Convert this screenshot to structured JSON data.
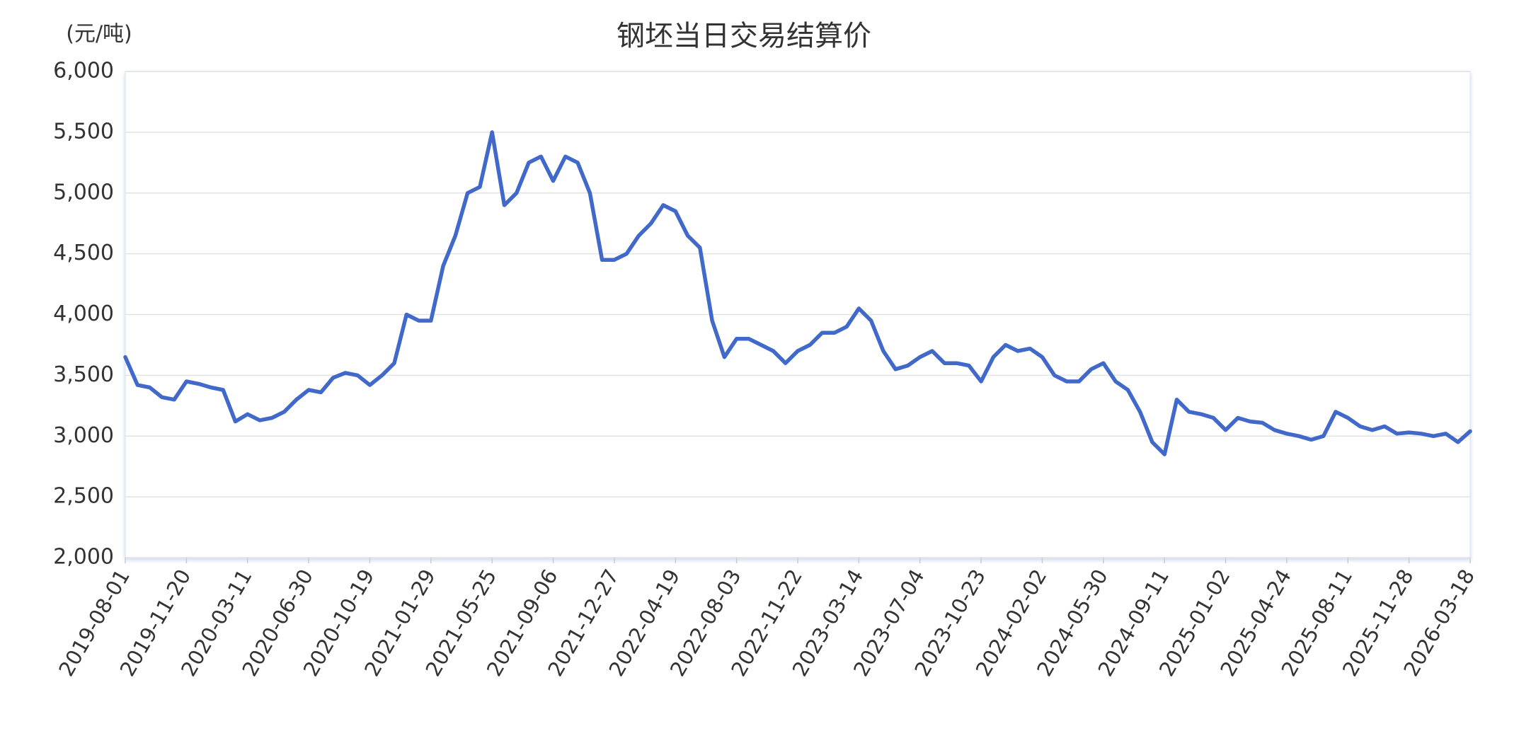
{
  "chart_data": {
    "type": "line",
    "title": "钢坯当日交易结算价",
    "y_label": "(元/吨)",
    "categories": [
      "2019-08-01",
      null,
      null,
      null,
      null,
      "2019-11-20",
      null,
      null,
      null,
      null,
      "2020-03-11",
      null,
      null,
      null,
      null,
      "2020-06-30",
      null,
      null,
      null,
      null,
      "2020-10-19",
      null,
      null,
      null,
      null,
      "2021-01-29",
      null,
      null,
      null,
      null,
      "2021-05-25",
      null,
      null,
      null,
      null,
      "2021-09-06",
      null,
      null,
      null,
      null,
      "2021-12-27",
      null,
      null,
      null,
      null,
      "2022-04-19",
      null,
      null,
      null,
      null,
      "2022-08-03",
      null,
      null,
      null,
      null,
      "2022-11-22",
      null,
      null,
      null,
      null,
      "2023-03-14",
      null,
      null,
      null,
      null,
      "2023-07-04",
      null,
      null,
      null,
      null,
      "2023-10-23",
      null,
      null,
      null,
      null,
      "2024-02-02",
      null,
      null,
      null,
      null,
      "2024-05-30",
      null,
      null,
      null,
      null,
      "2024-09-11",
      null,
      null,
      null,
      null,
      "2025-01-02",
      null,
      null,
      null,
      null,
      "2025-04-24",
      null,
      null,
      null,
      null,
      "2025-08-11",
      null,
      null,
      null,
      null,
      "2025-11-28",
      null,
      null,
      null,
      null,
      "2026-03-18"
    ],
    "values": [
      3650,
      3420,
      3400,
      3320,
      3300,
      3450,
      3430,
      3400,
      3380,
      3120,
      3180,
      3130,
      3150,
      3200,
      3300,
      3380,
      3360,
      3480,
      3520,
      3500,
      3420,
      3500,
      3600,
      4000,
      3950,
      3950,
      4400,
      4650,
      5000,
      5050,
      5500,
      4900,
      5000,
      5250,
      5300,
      5100,
      5300,
      5250,
      5000,
      4450,
      4450,
      4500,
      4650,
      4750,
      4900,
      4850,
      4650,
      4550,
      3950,
      3650,
      3800,
      3800,
      3750,
      3700,
      3600,
      3700,
      3750,
      3850,
      3850,
      3900,
      4050,
      3950,
      3700,
      3550,
      3580,
      3650,
      3700,
      3600,
      3600,
      3580,
      3450,
      3650,
      3750,
      3700,
      3720,
      3650,
      3500,
      3450,
      3450,
      3550,
      3600,
      3450,
      3380,
      3200,
      2950,
      2850,
      3300,
      3200,
      3180,
      3150,
      3050,
      3150,
      3120,
      3110,
      3050,
      3020,
      3000,
      2970,
      3000,
      3200,
      3150,
      3080,
      3050,
      3080,
      3020,
      3030,
      3020,
      3000,
      3020,
      2950,
      3040
    ],
    "color": "#4169c9",
    "ylim": [
      2000,
      6000
    ],
    "yticks": [
      {
        "value": 2000,
        "label": "2,000"
      },
      {
        "value": 2500,
        "label": "2,500"
      },
      {
        "value": 3000,
        "label": "3,000"
      },
      {
        "value": 3500,
        "label": "3,500"
      },
      {
        "value": 4000,
        "label": "4,000"
      },
      {
        "value": 4500,
        "label": "4,500"
      },
      {
        "value": 5000,
        "label": "5,000"
      },
      {
        "value": 5500,
        "label": "5,500"
      },
      {
        "value": 6000,
        "label": "6,000"
      }
    ],
    "grid": true
  }
}
